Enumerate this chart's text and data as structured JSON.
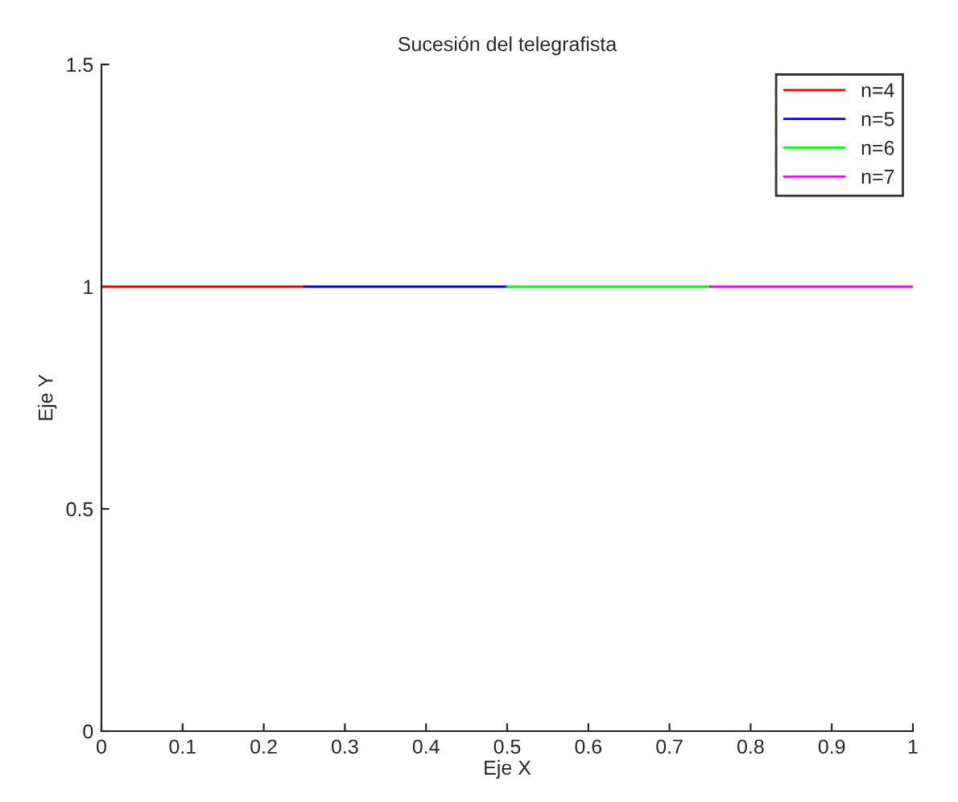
{
  "chart_data": {
    "type": "line",
    "title": "Sucesión del telegrafista",
    "xlabel": "Eje X",
    "ylabel": "Eje Y",
    "series": [
      {
        "name": "n=4",
        "color": "#ff0000",
        "x": [
          0,
          0.25
        ],
        "values": [
          1,
          1
        ]
      },
      {
        "name": "n=5",
        "color": "#0000ff",
        "x": [
          0.25,
          0.5
        ],
        "values": [
          1,
          1
        ]
      },
      {
        "name": "n=6",
        "color": "#00ff00",
        "x": [
          0.5,
          0.75
        ],
        "values": [
          1,
          1
        ]
      },
      {
        "name": "n=7",
        "color": "#ff00ff",
        "x": [
          0.75,
          1
        ],
        "values": [
          1,
          1
        ]
      }
    ],
    "xlim": [
      0,
      1
    ],
    "xticks": [
      0,
      0.1,
      0.2,
      0.3,
      0.4,
      0.5,
      0.6,
      0.7,
      0.8,
      0.9,
      1
    ],
    "ylim": [
      0,
      1.5
    ],
    "yticks": [
      0,
      0.5,
      1,
      1.5
    ],
    "legend": "top right",
    "grid": false,
    "line_style": "solid"
  }
}
